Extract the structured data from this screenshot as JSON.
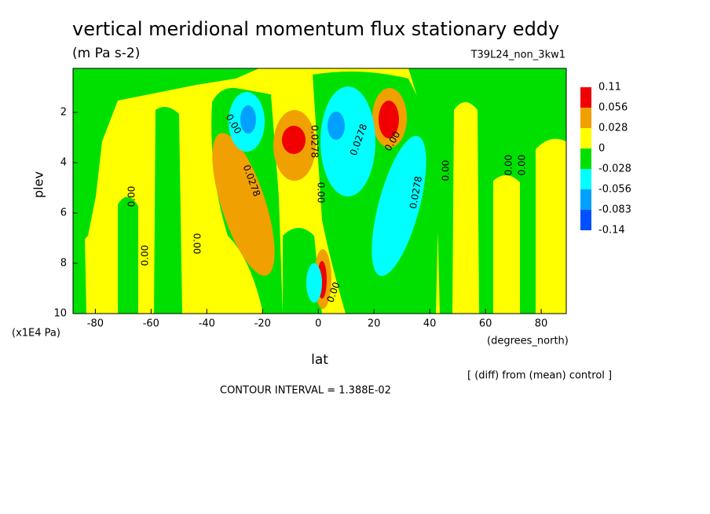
{
  "chart_data": {
    "type": "contour",
    "title": "vertical meridional momentum flux stationary eddy",
    "subtitle": "(m Pa s-2)",
    "run_label": "T39L24_non_3kw1",
    "x_label": "lat",
    "x_units": "(degrees_north)",
    "y_label": "plev",
    "y_units": "(x1E4 Pa)",
    "xlim": [
      -88,
      89
    ],
    "xticks": [
      -80,
      -60,
      -40,
      -20,
      0,
      20,
      40,
      60,
      80
    ],
    "ylim": [
      10,
      0.25
    ],
    "yticks": [
      2,
      4,
      6,
      8,
      10
    ],
    "colorbar": {
      "levels": [
        0.11,
        0.056,
        0.028,
        0,
        -0.028,
        -0.056,
        -0.083,
        -0.14
      ],
      "colors": [
        "#f00000",
        "#f0a000",
        "#ffff00",
        "#00e000",
        "#00ffff",
        "#00a0ff",
        "#0050ff"
      ]
    },
    "contour_labels": [
      "0.00",
      "0.0278",
      "0.0278",
      "0.0278",
      "0.00",
      "0.00",
      "0.00",
      "0.00",
      "0.0278",
      "0.00",
      "0.00",
      "0.00",
      "0.00",
      "0.00"
    ],
    "note": "[ (diff) from (mean) control ]",
    "contour_interval": "CONTOUR INTERVAL = 1.388E-02"
  }
}
